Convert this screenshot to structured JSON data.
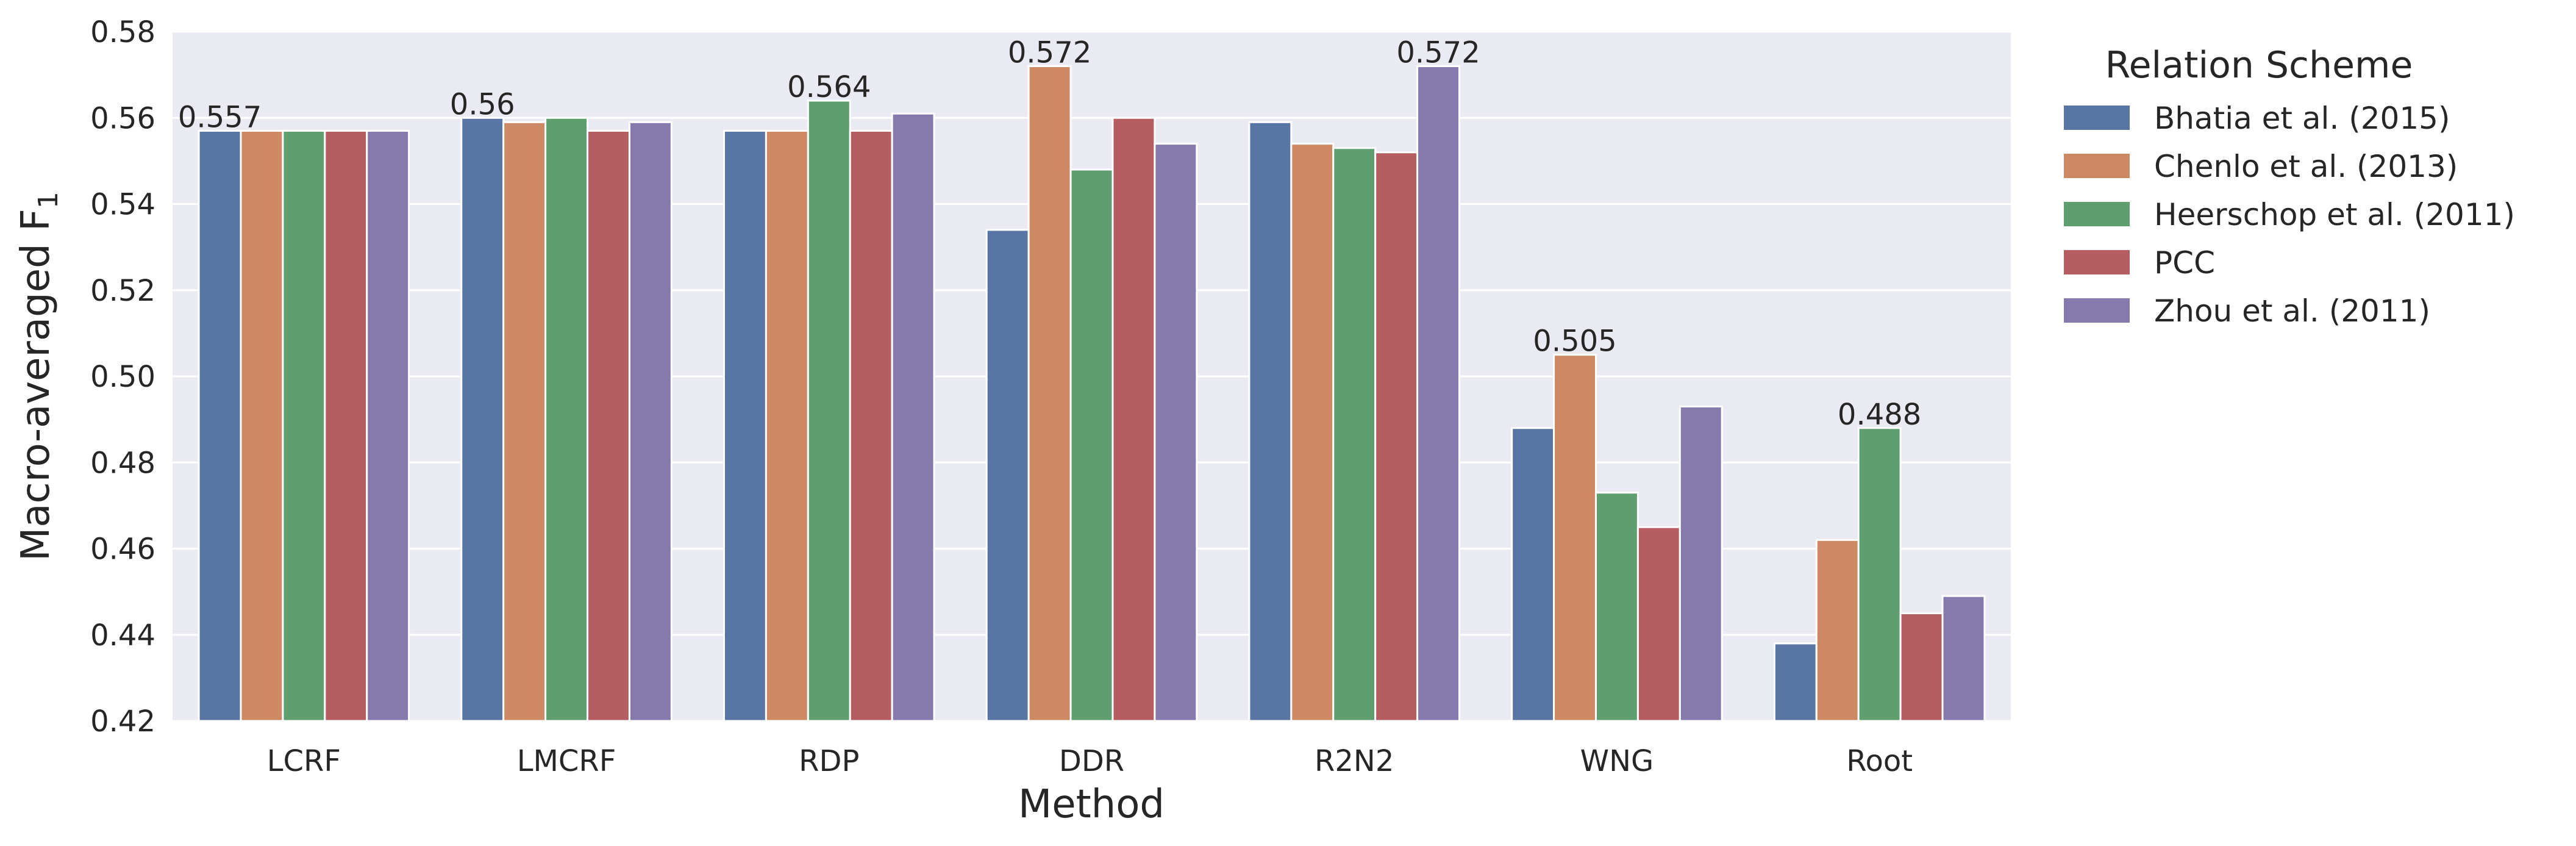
{
  "chart_data": {
    "type": "bar",
    "title": "",
    "xlabel": "Method",
    "ylabel": "Macro-averaged F",
    "ylabel_subscript": "1",
    "ylim": [
      0.42,
      0.58
    ],
    "yticks": [
      0.42,
      0.44,
      0.46,
      0.48,
      0.5,
      0.52,
      0.54,
      0.56,
      0.58
    ],
    "ytick_labels": [
      "0.42",
      "0.44",
      "0.46",
      "0.48",
      "0.50",
      "0.52",
      "0.54",
      "0.56",
      "0.58"
    ],
    "grid": true,
    "legend_title": "Relation Scheme",
    "legend_position": "outside-right",
    "categories": [
      "LCRF",
      "LMCRF",
      "RDP",
      "DDR",
      "R2N2",
      "WNG",
      "Root"
    ],
    "series": [
      {
        "name": "Bhatia et al. (2015)",
        "color": "#5875a4",
        "values": [
          0.557,
          0.56,
          0.557,
          0.534,
          0.559,
          0.488,
          0.438
        ]
      },
      {
        "name": "Chenlo et al. (2013)",
        "color": "#cc8963",
        "values": [
          0.557,
          0.559,
          0.557,
          0.572,
          0.554,
          0.505,
          0.462
        ]
      },
      {
        "name": "Heerschop et al. (2011)",
        "color": "#5f9e6e",
        "values": [
          0.557,
          0.56,
          0.564,
          0.548,
          0.553,
          0.473,
          0.488
        ]
      },
      {
        "name": "PCC",
        "color": "#b55d60",
        "values": [
          0.557,
          0.557,
          0.557,
          0.56,
          0.552,
          0.465,
          0.445
        ]
      },
      {
        "name": "Zhou et al. (2011)",
        "color": "#857aab",
        "values": [
          0.557,
          0.559,
          0.561,
          0.554,
          0.572,
          0.493,
          0.449
        ]
      }
    ],
    "annotations": [
      {
        "category": "LCRF",
        "series": 0,
        "text": "0.557"
      },
      {
        "category": "LMCRF",
        "series": 0,
        "text": "0.56"
      },
      {
        "category": "RDP",
        "series": 2,
        "text": "0.564"
      },
      {
        "category": "DDR",
        "series": 1,
        "text": "0.572"
      },
      {
        "category": "R2N2",
        "series": 4,
        "text": "0.572"
      },
      {
        "category": "WNG",
        "series": 1,
        "text": "0.505"
      },
      {
        "category": "Root",
        "series": 2,
        "text": "0.488"
      }
    ],
    "style": {
      "plot_background": "#eaeaf2",
      "grid_color": "#ffffff"
    }
  }
}
